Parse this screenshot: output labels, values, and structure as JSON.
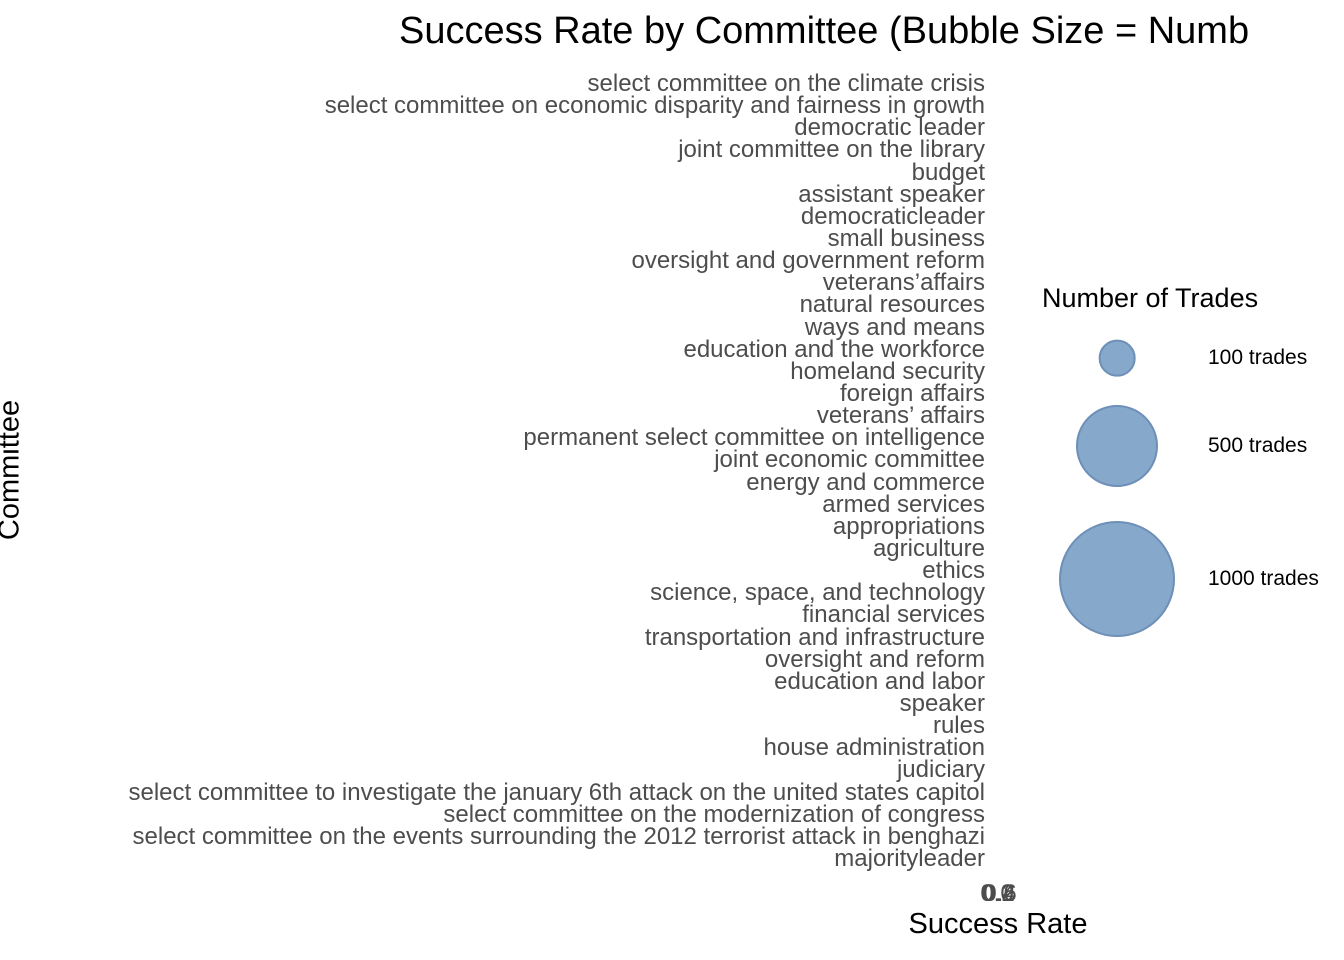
{
  "chart_data": {
    "type": "scatter",
    "title": "Success Rate by Committee (Bubble Size = Numb",
    "xlabel": "Success Rate",
    "ylabel": "Committee",
    "categories": [
      "select committee on the climate crisis",
      "select committee on economic disparity and fairness in growth",
      "democratic leader",
      "joint committee on the library",
      "budget",
      "assistant speaker",
      "democraticleader",
      "small business",
      "oversight and government reform",
      "veterans’affairs",
      "natural resources",
      "ways and means",
      "education and the workforce",
      "homeland security",
      "foreign affairs",
      "veterans’ affairs",
      "permanent select committee on intelligence",
      "joint economic committee",
      "energy and commerce",
      "armed services",
      "appropriations",
      "agriculture",
      "ethics",
      "science, space, and technology",
      "financial services",
      "transportation and infrastructure",
      "oversight and reform",
      "education and labor",
      "speaker",
      "rules",
      "house administration",
      "judiciary",
      "select committee to investigate the january 6th attack on the united states capitol",
      "select committee on the modernization of congress",
      "select committee on the events surrounding the 2012 terrorist attack in benghazi",
      "majorityleader"
    ],
    "x_tick_labels": [
      "0.0",
      "0.2",
      "0.4",
      "0.6"
    ],
    "legend": {
      "title": "Number of Trades",
      "placement": "right",
      "entries": [
        {
          "label": "100 trades",
          "value": 100
        },
        {
          "label": "500 trades",
          "value": 500
        },
        {
          "label": "1000 trades",
          "value": 1000
        }
      ]
    },
    "bubble_color": "#86a8cb",
    "bubble_edge_color": "#6d8fb8",
    "grid": false
  }
}
